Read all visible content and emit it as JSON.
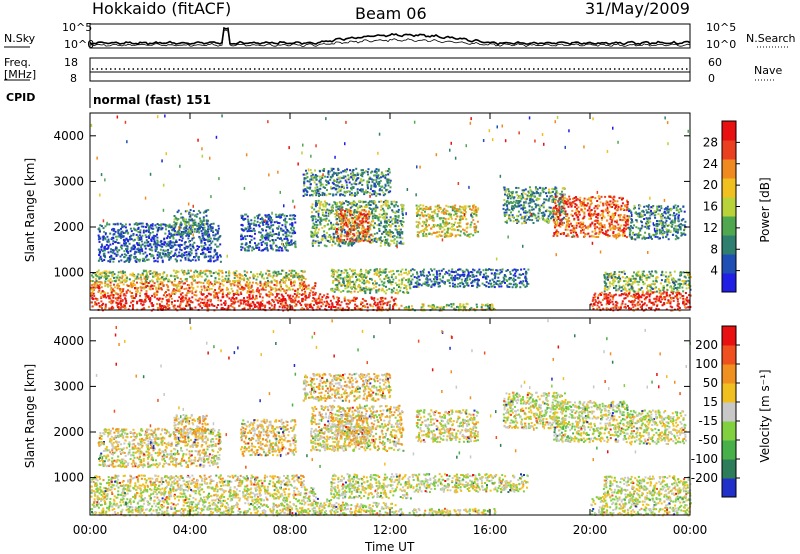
{
  "header": {
    "station": "Hokkaido (fitACF)",
    "beam": "Beam 06",
    "date": "31/May/2009"
  },
  "top_panels": {
    "nsky_label": "N.Sky",
    "nsearch_label": "N.Search",
    "log_ticks": [
      "10^5",
      "10^0"
    ],
    "freq_label_1": "Freq.",
    "freq_label_2": "[MHz]",
    "freq_ticks": [
      "18",
      "8"
    ],
    "nave_label": "Nave",
    "nave_ticks": [
      "60",
      "0"
    ],
    "cpid_label": "CPID",
    "cpid_value": "normal (fast) 151"
  },
  "chart_data": [
    {
      "type": "heatmap",
      "title": "",
      "xlabel": "",
      "ylabel": "Slant Range [km]",
      "x_ticks": [
        "00:00",
        "04:00",
        "08:00",
        "12:00",
        "16:00",
        "20:00",
        "00:00"
      ],
      "x_range_hours": [
        0,
        24
      ],
      "y_ticks": [
        1000,
        2000,
        3000,
        4000
      ],
      "ylim": [
        180,
        4500
      ],
      "colorbar": {
        "label": "Power [dB]",
        "ticks": [
          "4",
          "8",
          "12",
          "16",
          "20",
          "24",
          "28"
        ],
        "range": [
          0,
          32
        ],
        "colors": [
          "#1f1fe6",
          "#1f4fb4",
          "#2f7f6f",
          "#4fa84f",
          "#b8d23a",
          "#f0c020",
          "#f08a20",
          "#ea4020",
          "#e81010"
        ]
      },
      "regions": [
        {
          "t": [
            0.0,
            9.7
          ],
          "r": [
            190,
            560
          ],
          "level": 0.92
        },
        {
          "t": [
            9.7,
            12.2
          ],
          "r": [
            190,
            480
          ],
          "level": 0.85
        },
        {
          "t": [
            12.2,
            16.2
          ],
          "r": [
            190,
            340
          ],
          "level": 0.5
        },
        {
          "t": [
            20.0,
            24.0
          ],
          "r": [
            190,
            600
          ],
          "level": 0.9
        },
        {
          "t": [
            0.0,
            9.0
          ],
          "r": [
            560,
            820
          ],
          "level": 0.72
        },
        {
          "t": [
            0.0,
            8.6
          ],
          "r": [
            820,
            1070
          ],
          "level": 0.5
        },
        {
          "t": [
            9.6,
            12.8
          ],
          "r": [
            560,
            1100
          ],
          "level": 0.45
        },
        {
          "t": [
            12.8,
            17.5
          ],
          "r": [
            700,
            1100
          ],
          "level": 0.22
        },
        {
          "t": [
            20.5,
            24.0
          ],
          "r": [
            600,
            1050
          ],
          "level": 0.42
        },
        {
          "t": [
            0.3,
            5.2
          ],
          "r": [
            1250,
            2100
          ],
          "level": 0.18
        },
        {
          "t": [
            3.3,
            4.7
          ],
          "r": [
            1850,
            2400
          ],
          "level": 0.33
        },
        {
          "t": [
            6.0,
            8.2
          ],
          "r": [
            1500,
            2300
          ],
          "level": 0.2
        },
        {
          "t": [
            8.8,
            12.5
          ],
          "r": [
            1600,
            2600
          ],
          "level": 0.38
        },
        {
          "t": [
            9.8,
            11.2
          ],
          "r": [
            1700,
            2400
          ],
          "level": 0.8
        },
        {
          "t": [
            13.0,
            15.5
          ],
          "r": [
            1800,
            2500
          ],
          "level": 0.55
        },
        {
          "t": [
            16.5,
            19.0
          ],
          "r": [
            2100,
            2900
          ],
          "level": 0.35
        },
        {
          "t": [
            18.5,
            21.5
          ],
          "r": [
            1800,
            2700
          ],
          "level": 0.82
        },
        {
          "t": [
            21.5,
            23.8
          ],
          "r": [
            1750,
            2500
          ],
          "level": 0.3
        },
        {
          "t": [
            8.5,
            12.0
          ],
          "r": [
            2700,
            3300
          ],
          "level": 0.3
        }
      ]
    },
    {
      "type": "heatmap",
      "title": "",
      "xlabel": "Time UT",
      "ylabel": "Slant Range [km]",
      "x_ticks": [
        "00:00",
        "04:00",
        "08:00",
        "12:00",
        "16:00",
        "20:00",
        "00:00"
      ],
      "x_range_hours": [
        0,
        24
      ],
      "y_ticks": [
        1000,
        2000,
        3000,
        4000
      ],
      "ylim": [
        180,
        4500
      ],
      "colorbar": {
        "label": "Velocity [m s⁻¹]",
        "ticks": [
          "200",
          "100",
          "50",
          "15",
          "-15",
          "-50",
          "-100",
          "-200"
        ],
        "colors": [
          "#2030c8",
          "#2e7d5a",
          "#48b048",
          "#80d040",
          "#c8c8c8",
          "#f0c020",
          "#f09020",
          "#f05020",
          "#e81010"
        ]
      },
      "regions": [
        {
          "t": [
            0.0,
            9.7
          ],
          "r": [
            190,
            560
          ],
          "level": 0.5
        },
        {
          "t": [
            9.7,
            12.2
          ],
          "r": [
            190,
            480
          ],
          "level": 0.5
        },
        {
          "t": [
            12.2,
            16.2
          ],
          "r": [
            190,
            340
          ],
          "level": 0.5
        },
        {
          "t": [
            20.0,
            24.0
          ],
          "r": [
            190,
            600
          ],
          "level": 0.5
        },
        {
          "t": [
            0.0,
            9.0
          ],
          "r": [
            560,
            820
          ],
          "level": 0.5
        },
        {
          "t": [
            0.0,
            8.6
          ],
          "r": [
            820,
            1070
          ],
          "level": 0.55
        },
        {
          "t": [
            9.6,
            12.8
          ],
          "r": [
            560,
            1100
          ],
          "level": 0.5
        },
        {
          "t": [
            12.8,
            17.5
          ],
          "r": [
            700,
            1100
          ],
          "level": 0.5
        },
        {
          "t": [
            20.5,
            24.0
          ],
          "r": [
            600,
            1050
          ],
          "level": 0.5
        },
        {
          "t": [
            0.3,
            5.2
          ],
          "r": [
            1250,
            2100
          ],
          "level": 0.55
        },
        {
          "t": [
            3.3,
            4.7
          ],
          "r": [
            1850,
            2400
          ],
          "level": 0.6
        },
        {
          "t": [
            6.0,
            8.2
          ],
          "r": [
            1500,
            2300
          ],
          "level": 0.58
        },
        {
          "t": [
            8.8,
            12.5
          ],
          "r": [
            1600,
            2600
          ],
          "level": 0.56
        },
        {
          "t": [
            9.8,
            11.2
          ],
          "r": [
            1700,
            2400
          ],
          "level": 0.6
        },
        {
          "t": [
            13.0,
            15.5
          ],
          "r": [
            1800,
            2500
          ],
          "level": 0.52
        },
        {
          "t": [
            16.5,
            19.0
          ],
          "r": [
            2100,
            2900
          ],
          "level": 0.5
        },
        {
          "t": [
            18.5,
            21.5
          ],
          "r": [
            1800,
            2700
          ],
          "level": 0.48
        },
        {
          "t": [
            21.5,
            23.8
          ],
          "r": [
            1750,
            2500
          ],
          "level": 0.5
        },
        {
          "t": [
            8.5,
            12.0
          ],
          "r": [
            2700,
            3300
          ],
          "level": 0.58
        }
      ]
    }
  ]
}
